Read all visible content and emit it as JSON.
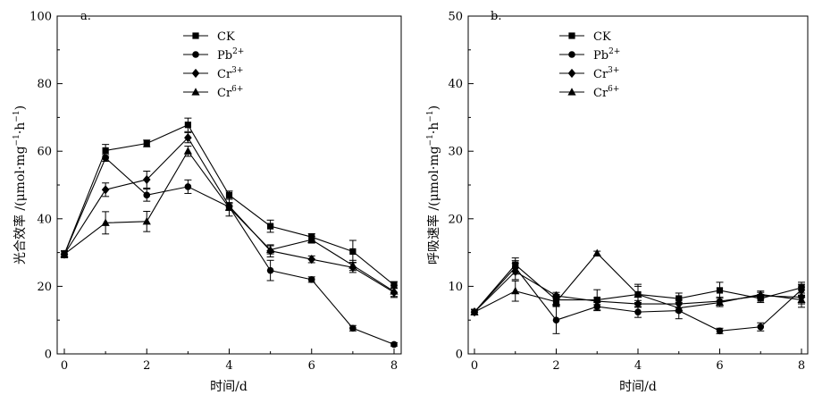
{
  "chart_data": [
    {
      "type": "line",
      "panel_label": "a.",
      "xlabel": "时间/d",
      "ylabel_main": "光合效率 /(μmol·mg",
      "ylabel_sup1": "−1",
      "ylabel_mid": "·h",
      "ylabel_sup2": "−1",
      "ylabel_end": ")",
      "xlim": [
        0,
        8
      ],
      "ylim": [
        0,
        100
      ],
      "xticks": [
        "0",
        "2",
        "4",
        "6",
        "8"
      ],
      "yticks": [
        "0",
        "20",
        "40",
        "60",
        "80",
        "100"
      ],
      "x": [
        0,
        1,
        2,
        3,
        4,
        5,
        6,
        7,
        8
      ],
      "series": [
        {
          "name": "CK",
          "name_base": "CK",
          "name_sup": "",
          "marker": "square",
          "values": [
            29.5,
            60.2,
            62.3,
            67.8,
            47.0,
            37.8,
            34.6,
            30.3,
            20.4
          ],
          "errors": [
            1.0,
            1.8,
            1.0,
            2.0,
            1.2,
            1.8,
            1.0,
            3.3,
            1.0
          ]
        },
        {
          "name": "Pb2+",
          "name_base": "Pb",
          "name_sup": "2+",
          "marker": "circle",
          "values": [
            29.5,
            58.0,
            47.0,
            49.5,
            43.5,
            24.7,
            22.0,
            7.6,
            2.8
          ],
          "errors": [
            1.0,
            1.0,
            1.8,
            2.0,
            1.0,
            3.0,
            0.8,
            0.8,
            0.5
          ]
        },
        {
          "name": "Cr3+",
          "name_base": "Cr",
          "name_sup": "3+",
          "marker": "diamond",
          "values": [
            29.5,
            48.6,
            51.6,
            64.0,
            43.8,
            30.5,
            28.0,
            25.6,
            18.2
          ],
          "errors": [
            1.0,
            2.0,
            2.5,
            1.5,
            1.0,
            1.8,
            1.0,
            1.5,
            1.2
          ]
        },
        {
          "name": "Cr6+",
          "name_base": "Cr",
          "name_sup": "6+",
          "marker": "triangle",
          "values": [
            29.5,
            38.8,
            39.2,
            60.0,
            43.3,
            30.8,
            33.8,
            26.2,
            18.5
          ],
          "errors": [
            1.0,
            3.3,
            3.0,
            1.5,
            2.5,
            1.2,
            1.0,
            1.5,
            1.8
          ]
        }
      ]
    },
    {
      "type": "line",
      "panel_label": "b.",
      "xlabel": "时间/d",
      "ylabel_main": "呼吸速率 /(μmol·mg",
      "ylabel_sup1": "−1",
      "ylabel_mid": "·h",
      "ylabel_sup2": "−1",
      "ylabel_end": ")",
      "xlim": [
        0,
        8
      ],
      "ylim": [
        0,
        50
      ],
      "xticks": [
        "0",
        "2",
        "4",
        "6",
        "8"
      ],
      "yticks": [
        "0",
        "10",
        "20",
        "30",
        "40",
        "50"
      ],
      "x": [
        0,
        1,
        2,
        3,
        4,
        5,
        6,
        7,
        8
      ],
      "series": [
        {
          "name": "CK",
          "name_base": "CK",
          "name_sup": "",
          "marker": "square",
          "values": [
            6.2,
            13.2,
            8.0,
            8.0,
            8.8,
            8.2,
            9.4,
            8.2,
            9.8
          ],
          "errors": [
            0.4,
            1.0,
            0.8,
            1.5,
            1.5,
            0.8,
            1.2,
            0.6,
            0.8
          ]
        },
        {
          "name": "Pb2+",
          "name_base": "Pb",
          "name_sup": "2+",
          "marker": "circle",
          "values": [
            6.2,
            12.8,
            5.0,
            7.0,
            6.2,
            6.4,
            3.4,
            4.0,
            9.5
          ],
          "errors": [
            0.4,
            1.0,
            2.0,
            0.6,
            0.8,
            1.2,
            0.4,
            0.6,
            0.8
          ]
        },
        {
          "name": "Cr3+",
          "name_base": "Cr",
          "name_sup": "3+",
          "marker": "diamond",
          "values": [
            6.2,
            12.2,
            8.6,
            7.8,
            7.4,
            7.4,
            7.8,
            8.6,
            8.4
          ],
          "errors": [
            0.4,
            1.2,
            0.5,
            0.5,
            0.5,
            0.6,
            0.6,
            0.5,
            1.5
          ]
        },
        {
          "name": "Cr6+",
          "name_base": "Cr",
          "name_sup": "6+",
          "marker": "triangle",
          "values": [
            6.2,
            9.3,
            7.7,
            14.9,
            8.8,
            6.8,
            7.6,
            8.8,
            8.0
          ],
          "errors": [
            0.4,
            1.5,
            0.6,
            0.3,
            1.2,
            0.6,
            0.6,
            0.5,
            0.6
          ]
        }
      ]
    }
  ]
}
